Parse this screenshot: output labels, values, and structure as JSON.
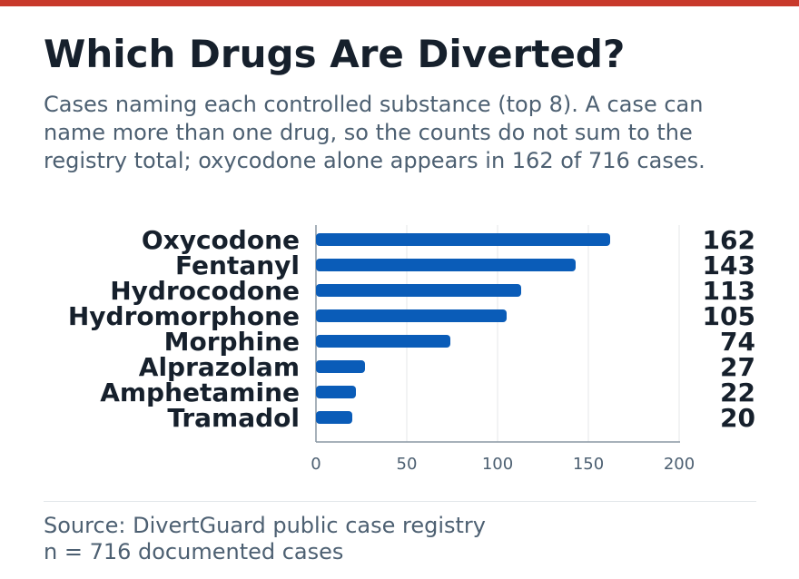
{
  "header": {
    "title": "Which Drugs Are Diverted?",
    "subtitle": "Cases naming each controlled substance (top 8). A case can name more than one drug, so the counts do not sum to the registry total; oxycodone alone appears in 162 of 716 cases."
  },
  "footer": {
    "source": "Source: DivertGuard public case registry",
    "n": "n = 716 documented cases"
  },
  "colors": {
    "accent": "#c8392b",
    "bar": "#0a5cb8",
    "text": "#16202c",
    "muted": "#4d6072"
  },
  "chart_data": {
    "type": "bar",
    "orientation": "horizontal",
    "categories": [
      "Oxycodone",
      "Fentanyl",
      "Hydrocodone",
      "Hydromorphone",
      "Morphine",
      "Alprazolam",
      "Amphetamine",
      "Tramadol"
    ],
    "values": [
      162,
      143,
      113,
      105,
      74,
      27,
      22,
      20
    ],
    "xlim": [
      0,
      200
    ],
    "xticks": [
      0,
      50,
      100,
      150,
      200
    ],
    "grid": true,
    "value_labels": true
  }
}
